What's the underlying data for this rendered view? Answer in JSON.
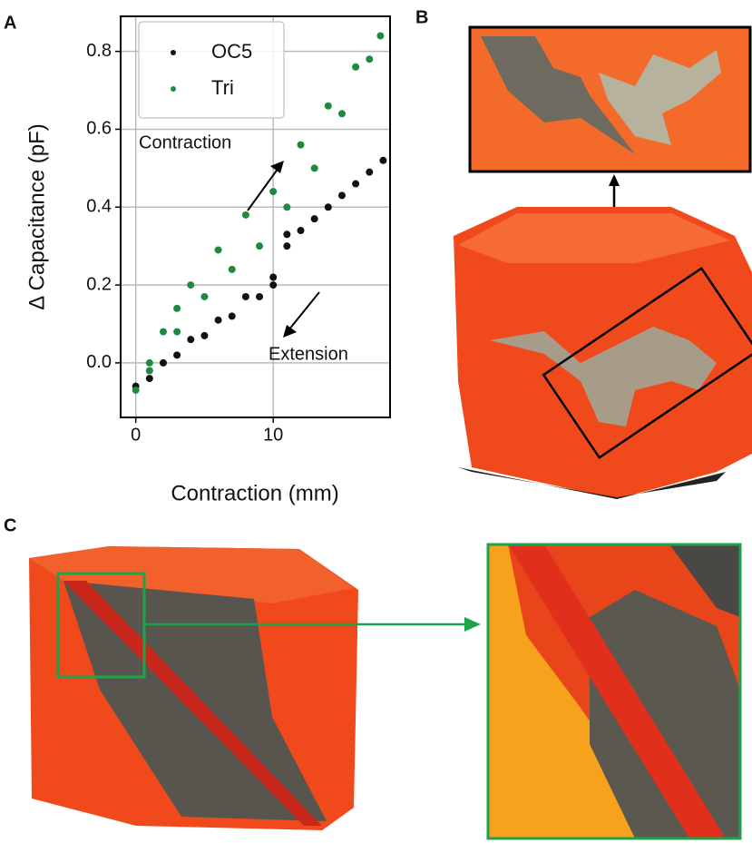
{
  "panels": [
    "A",
    "B",
    "C"
  ],
  "chart_data": {
    "type": "scatter",
    "xlabel": "Contraction (mm)",
    "ylabel": "Δ Capacitance (pF)",
    "annotations": [
      "Contraction",
      "Extension"
    ],
    "xlim": [
      -1.1,
      18.5
    ],
    "xticks": [
      0,
      10
    ],
    "ylim": [
      -0.14,
      0.89
    ],
    "yticks": [
      {
        "value": 0,
        "label": "0.0"
      },
      0.2,
      0.4,
      0.6,
      0.8
    ],
    "grid": true,
    "legend": "upper left",
    "series": [
      {
        "name": "OC5",
        "color": "#111111",
        "x": [
          0,
          2,
          4,
          6,
          8,
          10,
          11,
          12,
          14,
          16,
          18,
          17,
          15,
          13,
          11,
          10,
          9,
          7,
          5,
          3,
          1
        ],
        "values": [
          -0.06,
          0.0,
          0.06,
          0.11,
          0.17,
          0.22,
          0.3,
          0.34,
          0.4,
          0.46,
          0.52,
          0.49,
          0.43,
          0.37,
          0.33,
          0.2,
          0.17,
          0.12,
          0.07,
          0.02,
          -0.04
        ]
      },
      {
        "name": "Tri",
        "color": "#1e8a3e",
        "x": [
          0,
          1,
          2,
          3,
          4,
          6,
          8,
          10,
          12,
          14,
          16,
          17.8,
          17,
          15,
          13,
          11,
          9,
          7,
          5,
          3,
          1
        ],
        "values": [
          -0.07,
          0.0,
          0.08,
          0.14,
          0.2,
          0.29,
          0.38,
          0.44,
          0.56,
          0.66,
          0.76,
          0.84,
          0.78,
          0.64,
          0.5,
          0.4,
          0.3,
          0.24,
          0.17,
          0.08,
          -0.02
        ]
      }
    ]
  }
}
